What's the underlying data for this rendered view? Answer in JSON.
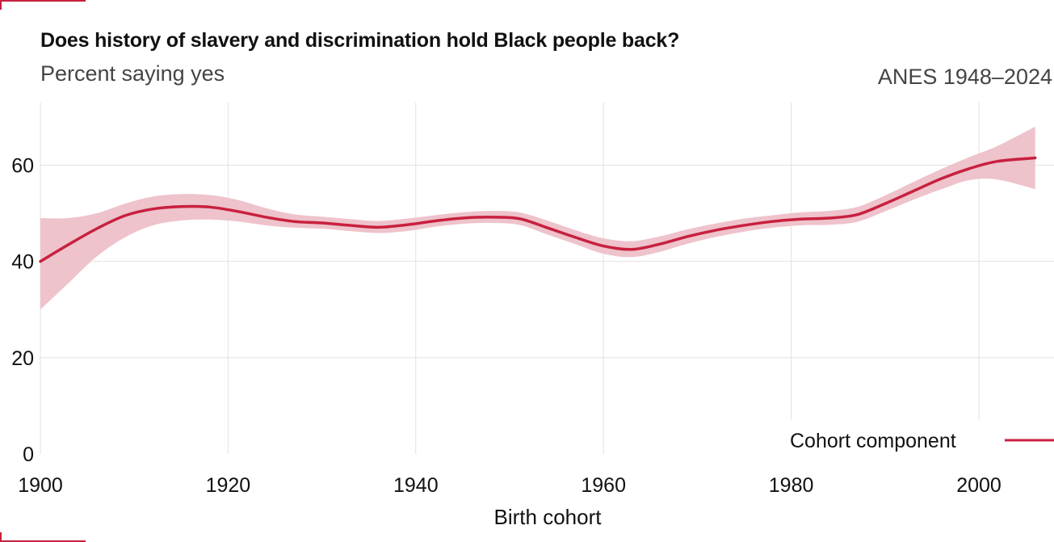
{
  "header": {
    "title": "Does history of slavery and discrimination hold Black people back?",
    "subtitle": "Percent saying yes",
    "source": "ANES 1948–2024"
  },
  "colors": {
    "line": "#c8203f",
    "band": "#eec3cb",
    "grid": "#e2e2e2"
  },
  "chart_data": {
    "type": "line",
    "title": "Does history of slavery and discrimination hold Black people back?",
    "subtitle": "Percent saying yes",
    "xlabel": "Birth cohort",
    "ylabel": "",
    "xlim": [
      1900,
      2006
    ],
    "ylim": [
      0,
      73
    ],
    "x_ticks": [
      "1900",
      "1920",
      "1940",
      "1960",
      "1980",
      "2000"
    ],
    "y_ticks": [
      "0",
      "20",
      "40",
      "60"
    ],
    "grid": true,
    "legend": {
      "position": "bottom-right",
      "entries": [
        "Cohort component"
      ]
    },
    "series": [
      {
        "name": "Cohort component",
        "x": [
          1900,
          1903,
          1906,
          1909,
          1912,
          1915,
          1918,
          1921,
          1924,
          1927,
          1930,
          1933,
          1936,
          1939,
          1942,
          1945,
          1948,
          1951,
          1954,
          1957,
          1960,
          1963,
          1966,
          1969,
          1972,
          1975,
          1978,
          1981,
          1984,
          1987,
          1990,
          1993,
          1996,
          1999,
          2002,
          2006
        ],
        "y": [
          40.0,
          43.5,
          46.8,
          49.5,
          50.9,
          51.4,
          51.3,
          50.4,
          49.2,
          48.3,
          48.0,
          47.5,
          47.1,
          47.6,
          48.4,
          49.0,
          49.2,
          48.9,
          47.0,
          45.0,
          43.2,
          42.5,
          43.6,
          45.2,
          46.5,
          47.5,
          48.3,
          48.8,
          49.0,
          49.7,
          52.0,
          54.6,
          57.2,
          59.3,
          60.8,
          61.5
        ],
        "lower": [
          30.0,
          35.5,
          41.0,
          45.0,
          47.5,
          48.5,
          48.7,
          48.3,
          47.5,
          47.0,
          46.8,
          46.3,
          45.9,
          46.3,
          47.2,
          47.8,
          48.0,
          47.6,
          45.6,
          43.6,
          41.6,
          40.9,
          42.0,
          43.7,
          45.1,
          46.2,
          47.0,
          47.5,
          47.6,
          48.2,
          50.4,
          52.8,
          55.0,
          56.9,
          57.0,
          55.0
        ],
        "upper": [
          49.0,
          49.0,
          50.0,
          52.0,
          53.5,
          54.0,
          53.8,
          52.8,
          51.1,
          49.8,
          49.3,
          48.8,
          48.4,
          48.9,
          49.6,
          50.2,
          50.5,
          50.2,
          48.5,
          46.5,
          44.8,
          44.2,
          45.2,
          46.7,
          47.9,
          48.9,
          49.6,
          50.2,
          50.5,
          51.3,
          53.7,
          56.5,
          59.2,
          61.7,
          64.0,
          68.0
        ]
      }
    ]
  }
}
